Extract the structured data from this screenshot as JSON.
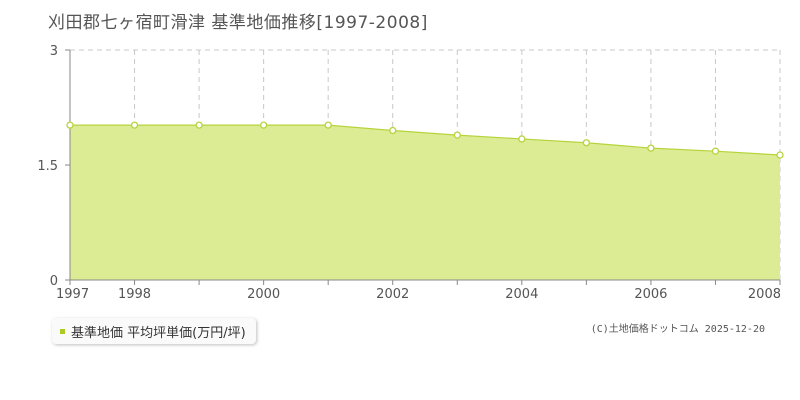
{
  "page": {
    "title": "刈田郡七ヶ宿町滑津 基準地価推移[1997-2008]",
    "credit": "(C)土地価格ドットコム 2025-12-20"
  },
  "legend": {
    "label": "基準地価 平均坪単価(万円/坪)"
  },
  "colors": {
    "fill": "#dcec94",
    "line": "#b5d43c",
    "marker_fill": "#ffffff",
    "marker_stroke": "#b5d43c",
    "grid": "#c8c8c8",
    "swatch": "#aacc22"
  },
  "chart_data": {
    "type": "area",
    "x": [
      1997,
      1998,
      1999,
      2000,
      2001,
      2002,
      2003,
      2004,
      2005,
      2006,
      2007,
      2008
    ],
    "series": [
      {
        "name": "基準地価 平均坪単価(万円/坪)",
        "values": [
          2.02,
          2.02,
          2.02,
          2.02,
          2.02,
          1.95,
          1.89,
          1.84,
          1.79,
          1.72,
          1.68,
          1.63
        ]
      }
    ],
    "xlim": [
      1997,
      2008
    ],
    "ylim": [
      0,
      3
    ],
    "xticks": [
      "1997",
      "1998",
      "2000",
      "2002",
      "2004",
      "2006",
      "2008"
    ],
    "yticks": [
      "0",
      "1.5",
      "3"
    ],
    "grid": true,
    "legend_position": "bottom-left"
  }
}
